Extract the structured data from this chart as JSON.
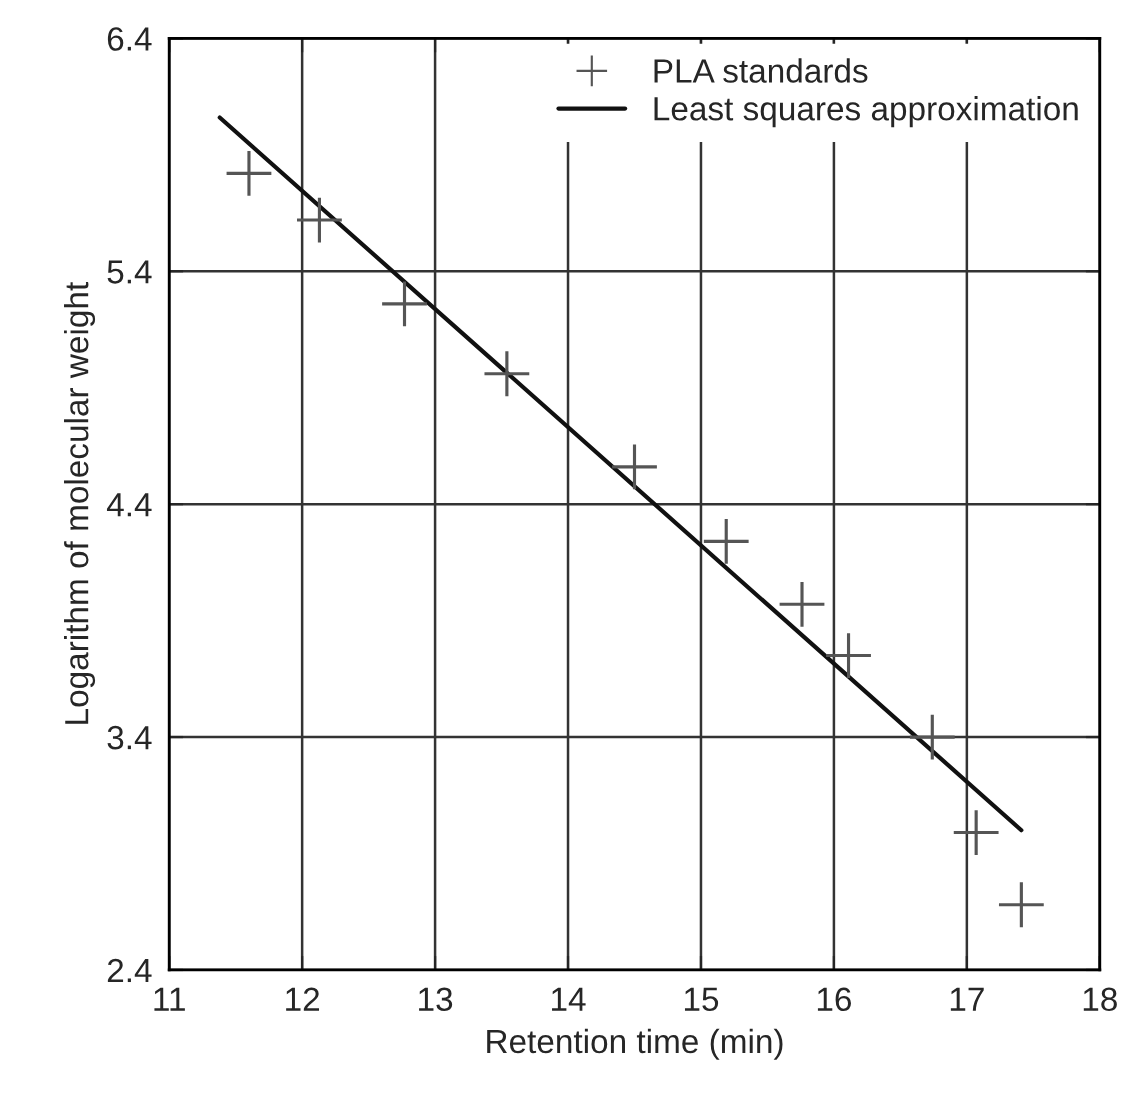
{
  "chart_data": {
    "type": "scatter",
    "xlabel": "Retention time (min)",
    "ylabel": "Logarithm of molecular weight",
    "series": [
      {
        "name": "PLA standards",
        "color": "#555555",
        "marker": "cross",
        "x": [
          11.6,
          12.13,
          12.77,
          13.54,
          14.5,
          15.19,
          15.76,
          16.11,
          16.74,
          17.07,
          17.41
        ],
        "values": [
          5.82,
          5.62,
          5.26,
          4.96,
          4.56,
          4.24,
          3.97,
          3.75,
          3.4,
          2.99,
          2.68
        ]
      },
      {
        "name": "Least squares approximation",
        "type": "line",
        "color": "#111111",
        "marker": "none",
        "line_style": "solid",
        "x": [
          11.38,
          17.41
        ],
        "values": [
          6.06,
          3.0
        ]
      }
    ],
    "xlim": [
      11,
      18
    ],
    "xticks": [
      11,
      12,
      13,
      14,
      15,
      16,
      17,
      18
    ],
    "ylim": [
      2.4,
      6.4
    ],
    "yticks": [
      2.4,
      3.4,
      4.4,
      5.4,
      6.4
    ],
    "grid": true,
    "legend": "top right"
  }
}
